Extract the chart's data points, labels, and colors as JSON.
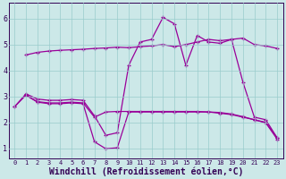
{
  "background_color": "#cce8e8",
  "line_color": "#990099",
  "grid_color": "#99cccc",
  "xlabel": "Windchill (Refroidissement éolien,°C)",
  "xlabel_fontsize": 7,
  "yticks": [
    1,
    2,
    3,
    4,
    5,
    6
  ],
  "xticks": [
    0,
    1,
    2,
    3,
    4,
    5,
    6,
    7,
    8,
    9,
    10,
    11,
    12,
    13,
    14,
    15,
    16,
    17,
    18,
    19,
    20,
    21,
    22,
    23
  ],
  "ylim": [
    0.6,
    6.6
  ],
  "xlim": [
    -0.5,
    23.5
  ],
  "line1_x": [
    1,
    2,
    3,
    4,
    5,
    6,
    7,
    8,
    9,
    10,
    11,
    12,
    13,
    14,
    15,
    16,
    17,
    18,
    19,
    20,
    21,
    22,
    23
  ],
  "line1_y": [
    4.6,
    4.7,
    4.75,
    4.78,
    4.8,
    4.82,
    4.85,
    4.87,
    4.9,
    4.88,
    4.92,
    4.95,
    5.0,
    4.92,
    5.0,
    5.1,
    5.2,
    5.15,
    5.2,
    5.25,
    5.0,
    4.95,
    4.85
  ],
  "line2_x": [
    0,
    1,
    2,
    3,
    4,
    5,
    6,
    7,
    8,
    9,
    10,
    11,
    12,
    13,
    14,
    15,
    16,
    17,
    18,
    19,
    20,
    21,
    22,
    23
  ],
  "line2_y": [
    2.6,
    3.1,
    2.9,
    2.85,
    2.85,
    2.88,
    2.85,
    2.25,
    1.5,
    1.6,
    4.2,
    5.1,
    5.2,
    6.05,
    5.8,
    4.2,
    5.35,
    5.1,
    5.05,
    5.2,
    3.55,
    2.2,
    2.1,
    1.4
  ],
  "line3_x": [
    0,
    1,
    2,
    3,
    4,
    5,
    6,
    7,
    8,
    9,
    10,
    11,
    12,
    13,
    14,
    15,
    16,
    17,
    18,
    19,
    20,
    21,
    22,
    23
  ],
  "line3_y": [
    2.6,
    3.05,
    2.8,
    2.75,
    2.75,
    2.78,
    2.75,
    2.2,
    2.4,
    2.42,
    2.42,
    2.42,
    2.42,
    2.42,
    2.42,
    2.42,
    2.42,
    2.4,
    2.35,
    2.3,
    2.2,
    2.1,
    2.0,
    1.4
  ],
  "line4_x": [
    1,
    2,
    3,
    4,
    5,
    6,
    7,
    8,
    9,
    10,
    11,
    12,
    13,
    14,
    15,
    16,
    17,
    18,
    19,
    20,
    21,
    22,
    23
  ],
  "line4_y": [
    3.05,
    2.78,
    2.72,
    2.72,
    2.75,
    2.72,
    1.25,
    0.98,
    1.02,
    2.4,
    2.4,
    2.4,
    2.4,
    2.4,
    2.4,
    2.4,
    2.4,
    2.38,
    2.32,
    2.22,
    2.1,
    1.98,
    1.35
  ]
}
